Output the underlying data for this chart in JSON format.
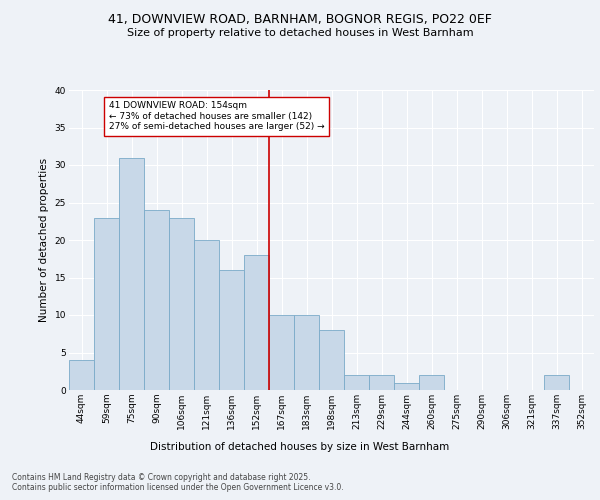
{
  "title_line1": "41, DOWNVIEW ROAD, BARNHAM, BOGNOR REGIS, PO22 0EF",
  "title_line2": "Size of property relative to detached houses in West Barnham",
  "xlabel": "Distribution of detached houses by size in West Barnham",
  "ylabel": "Number of detached properties",
  "bar_labels": [
    "44sqm",
    "59sqm",
    "75sqm",
    "90sqm",
    "106sqm",
    "121sqm",
    "136sqm",
    "152sqm",
    "167sqm",
    "183sqm",
    "198sqm",
    "213sqm",
    "229sqm",
    "244sqm",
    "260sqm",
    "275sqm",
    "290sqm",
    "306sqm",
    "321sqm",
    "337sqm",
    "352sqm"
  ],
  "bar_values": [
    4,
    23,
    31,
    24,
    23,
    20,
    16,
    18,
    10,
    10,
    8,
    2,
    2,
    1,
    2,
    0,
    0,
    0,
    0,
    2,
    0
  ],
  "bar_color": "#c8d8e8",
  "bar_edgecolor": "#7aaac8",
  "vline_x": 7.5,
  "vline_color": "#cc0000",
  "annotation_box_text": "41 DOWNVIEW ROAD: 154sqm\n← 73% of detached houses are smaller (142)\n27% of semi-detached houses are larger (52) →",
  "ylim": [
    0,
    40
  ],
  "yticks": [
    0,
    5,
    10,
    15,
    20,
    25,
    30,
    35,
    40
  ],
  "footnote": "Contains HM Land Registry data © Crown copyright and database right 2025.\nContains public sector information licensed under the Open Government Licence v3.0.",
  "background_color": "#eef2f7",
  "plot_background": "#eef2f7",
  "grid_color": "#ffffff",
  "title_fontsize": 9,
  "subtitle_fontsize": 8,
  "axis_label_fontsize": 7.5,
  "tick_fontsize": 6.5,
  "annotation_fontsize": 6.5,
  "footnote_fontsize": 5.5
}
